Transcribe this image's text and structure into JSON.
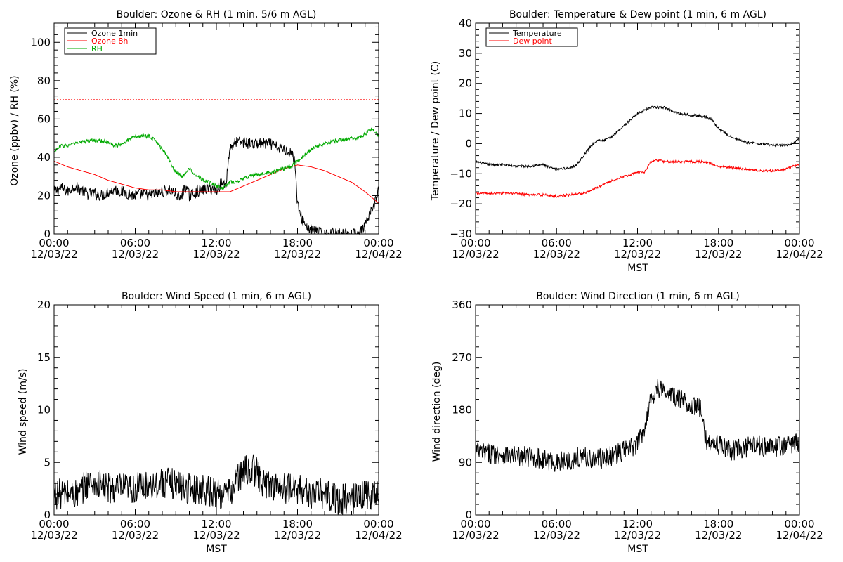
{
  "page": {
    "background": "#ffffff"
  },
  "chart_data": [
    {
      "id": "ozone",
      "type": "line",
      "title": "Boulder: Ozone & RH (1 min, 5/6 m AGL)",
      "ylabel": "Ozone (ppbv) / RH (%)",
      "xlabel": "",
      "xlim": [
        0,
        24
      ],
      "ylim": [
        0,
        110
      ],
      "x_ticks": [
        0,
        6,
        12,
        18,
        24
      ],
      "x_tick_labels": [
        [
          "00:00",
          "12/03/22"
        ],
        [
          "06:00",
          "12/03/22"
        ],
        [
          "12:00",
          "12/03/22"
        ],
        [
          "18:00",
          "12/03/22"
        ],
        [
          "00:00",
          "12/04/22"
        ]
      ],
      "y_ticks": [
        0,
        20,
        40,
        60,
        80,
        100
      ],
      "y_tick_labels": [
        "0",
        "20",
        "40",
        "60",
        "80",
        "100"
      ],
      "legend": "top-left",
      "reference_line": {
        "y": 70,
        "color": "#ff0000",
        "style": "dotted"
      },
      "series": [
        {
          "name": "Ozone 1min",
          "color": "#000000",
          "noise": 3.0,
          "x": [
            0,
            0.5,
            1,
            1.5,
            2,
            2.5,
            3,
            3.5,
            4,
            4.5,
            5,
            5.5,
            6,
            6.5,
            7,
            7.5,
            8,
            8.5,
            9,
            9.3,
            9.5,
            9.7,
            10,
            10.5,
            11,
            11.5,
            12,
            12.3,
            12.7,
            13,
            13.3,
            13.5,
            14,
            14.5,
            15,
            15.5,
            16,
            16.5,
            17,
            17.5,
            17.8,
            18,
            18.3,
            18.7,
            19,
            19.5,
            20,
            20.5,
            21,
            21.5,
            22,
            22.5,
            23,
            23.5,
            24
          ],
          "y": [
            22,
            24,
            22,
            25,
            23,
            21,
            21,
            20,
            22,
            23,
            22,
            21,
            20,
            21,
            20,
            21,
            22,
            23,
            21,
            18,
            21,
            25,
            20,
            22,
            23,
            24,
            23,
            26,
            26,
            45,
            47,
            48,
            48,
            47,
            47,
            47,
            47,
            45,
            44,
            43,
            38,
            15,
            8,
            4,
            2,
            1,
            0,
            0,
            0,
            0,
            0,
            0,
            4,
            12,
            23
          ]
        },
        {
          "name": "Ozone 8h",
          "color": "#ff0000",
          "noise": 0,
          "x": [
            0,
            1,
            2,
            3,
            4,
            5,
            6,
            7,
            8,
            9,
            10,
            11,
            12,
            13,
            14,
            15,
            16,
            17,
            18,
            19,
            20,
            21,
            22,
            23,
            24
          ],
          "y": [
            38,
            35,
            33,
            31,
            28,
            26,
            24,
            23,
            23,
            22,
            22,
            22,
            22,
            22,
            25,
            28,
            31,
            34,
            36,
            35,
            33,
            30,
            27,
            22,
            16
          ]
        },
        {
          "name": "RH",
          "color": "#00aa00",
          "noise": 1.0,
          "x": [
            0,
            0.5,
            1,
            1.5,
            2,
            3,
            4,
            4.5,
            5,
            5.5,
            6,
            6.5,
            7,
            7.5,
            8,
            8.5,
            9,
            9.5,
            10,
            10.5,
            11,
            11.5,
            12,
            12.5,
            13,
            13.5,
            14,
            14.5,
            15,
            16,
            17,
            17.5,
            18,
            18.5,
            19,
            19.5,
            20,
            21,
            22,
            22.5,
            23,
            23.5,
            24
          ],
          "y": [
            43,
            46,
            46,
            47,
            48,
            49,
            48,
            46,
            47,
            49,
            51,
            51,
            51,
            49,
            44,
            39,
            32,
            30,
            34,
            31,
            28,
            27,
            25,
            24,
            27,
            27,
            29,
            30,
            31,
            32,
            34,
            35,
            38,
            41,
            44,
            46,
            47,
            49,
            50,
            50,
            52,
            55,
            51
          ]
        }
      ]
    },
    {
      "id": "temp",
      "type": "line",
      "title": "Boulder: Temperature & Dew point (1 min, 6 m AGL)",
      "ylabel": "Temperature / Dew point (C)",
      "xlabel": "MST",
      "xlim": [
        0,
        24
      ],
      "ylim": [
        -30,
        40
      ],
      "x_ticks": [
        0,
        6,
        12,
        18,
        24
      ],
      "x_tick_labels": [
        [
          "00:00",
          "12/03/22"
        ],
        [
          "06:00",
          "12/03/22"
        ],
        [
          "12:00",
          "12/03/22"
        ],
        [
          "18:00",
          "12/03/22"
        ],
        [
          "00:00",
          "12/04/22"
        ]
      ],
      "y_ticks": [
        -30,
        -20,
        -10,
        0,
        10,
        20,
        30,
        40
      ],
      "y_tick_labels": [
        "−30",
        "−20",
        "−10",
        "0",
        "10",
        "20",
        "30",
        "40"
      ],
      "legend": "top-left",
      "series": [
        {
          "name": "Temperature",
          "color": "#000000",
          "noise": 0.4,
          "x": [
            0,
            1,
            2,
            3,
            4,
            5,
            5.5,
            6,
            7,
            7.5,
            8,
            8.5,
            9,
            9.5,
            10,
            11,
            12,
            13,
            14,
            15,
            16,
            17,
            17.5,
            18,
            19,
            20,
            21,
            22,
            23,
            23.5,
            24
          ],
          "y": [
            -6,
            -7,
            -7,
            -7.5,
            -7.5,
            -7,
            -8,
            -8.5,
            -8,
            -7,
            -4,
            -1,
            1,
            1,
            2,
            6,
            10,
            12,
            12,
            10,
            9.5,
            9,
            8,
            5,
            2,
            0.5,
            0,
            -0.5,
            -0.5,
            0,
            2
          ]
        },
        {
          "name": "Dew point",
          "color": "#ff0000",
          "noise": 0.4,
          "x": [
            0,
            1,
            2,
            3,
            4,
            5,
            6,
            7,
            8,
            9,
            10,
            11,
            12,
            12.5,
            13,
            13.5,
            14,
            15,
            16,
            17,
            18,
            19,
            20,
            21,
            22,
            23,
            23.5,
            24
          ],
          "y": [
            -16.5,
            -16.5,
            -16.5,
            -16.5,
            -17,
            -17,
            -17.5,
            -17,
            -16.5,
            -14.5,
            -12.5,
            -11,
            -9.5,
            -9.5,
            -6,
            -5.5,
            -6,
            -6,
            -6,
            -6,
            -7.5,
            -8,
            -8.5,
            -9,
            -9,
            -8.5,
            -7.5,
            -7
          ]
        }
      ]
    },
    {
      "id": "wspd",
      "type": "line",
      "title": "Boulder: Wind Speed (1 min, 6 m AGL)",
      "ylabel": "Wind speed (m/s)",
      "xlabel": "MST",
      "xlim": [
        0,
        24
      ],
      "ylim": [
        0,
        20
      ],
      "x_ticks": [
        0,
        6,
        12,
        18,
        24
      ],
      "x_tick_labels": [
        [
          "00:00",
          "12/03/22"
        ],
        [
          "06:00",
          "12/03/22"
        ],
        [
          "12:00",
          "12/03/22"
        ],
        [
          "18:00",
          "12/03/22"
        ],
        [
          "00:00",
          "12/04/22"
        ]
      ],
      "y_ticks": [
        0,
        5,
        10,
        15,
        20
      ],
      "y_tick_labels": [
        "0",
        "5",
        "10",
        "15",
        "20"
      ],
      "series": [
        {
          "name": "Wind speed",
          "color": "#000000",
          "noise": 1.5,
          "x": [
            0,
            1,
            2,
            2.3,
            3,
            4,
            5,
            6,
            7,
            8,
            9,
            10,
            11,
            12,
            13,
            13.5,
            14,
            14.5,
            15,
            15.5,
            16,
            17,
            18,
            19,
            20,
            21,
            22,
            23,
            24
          ],
          "y": [
            2,
            2,
            2,
            3,
            3,
            2.5,
            2.5,
            2.5,
            3,
            3,
            3,
            2.5,
            2.5,
            2,
            2,
            3.5,
            4,
            4.5,
            4,
            3,
            3,
            2.5,
            2.5,
            2,
            2,
            1.5,
            1.5,
            2,
            2
          ]
        }
      ]
    },
    {
      "id": "wdir",
      "type": "line",
      "title": "Boulder: Wind Direction (1 min, 6 m AGL)",
      "ylabel": "Wind direction (deg)",
      "xlabel": "MST",
      "xlim": [
        0,
        24
      ],
      "ylim": [
        0,
        360
      ],
      "x_ticks": [
        0,
        6,
        12,
        18,
        24
      ],
      "x_tick_labels": [
        [
          "00:00",
          "12/03/22"
        ],
        [
          "06:00",
          "12/03/22"
        ],
        [
          "12:00",
          "12/03/22"
        ],
        [
          "18:00",
          "12/03/22"
        ],
        [
          "00:00",
          "12/04/22"
        ]
      ],
      "y_ticks": [
        0,
        90,
        180,
        270,
        360
      ],
      "y_tick_labels": [
        "0",
        "90",
        "180",
        "270",
        "360"
      ],
      "series": [
        {
          "name": "Wind direction",
          "color": "#000000",
          "noise": 18,
          "x": [
            0,
            1,
            2,
            3,
            4,
            5,
            6,
            7,
            8,
            9,
            10,
            11,
            12,
            12.5,
            13,
            13.5,
            14,
            15,
            16,
            16.7,
            17,
            18,
            19,
            20,
            21,
            22,
            23,
            24
          ],
          "y": [
            110,
            105,
            105,
            100,
            100,
            95,
            90,
            95,
            100,
            95,
            100,
            110,
            120,
            150,
            200,
            220,
            210,
            200,
            190,
            180,
            130,
            120,
            110,
            115,
            120,
            115,
            120,
            125
          ]
        }
      ]
    }
  ]
}
